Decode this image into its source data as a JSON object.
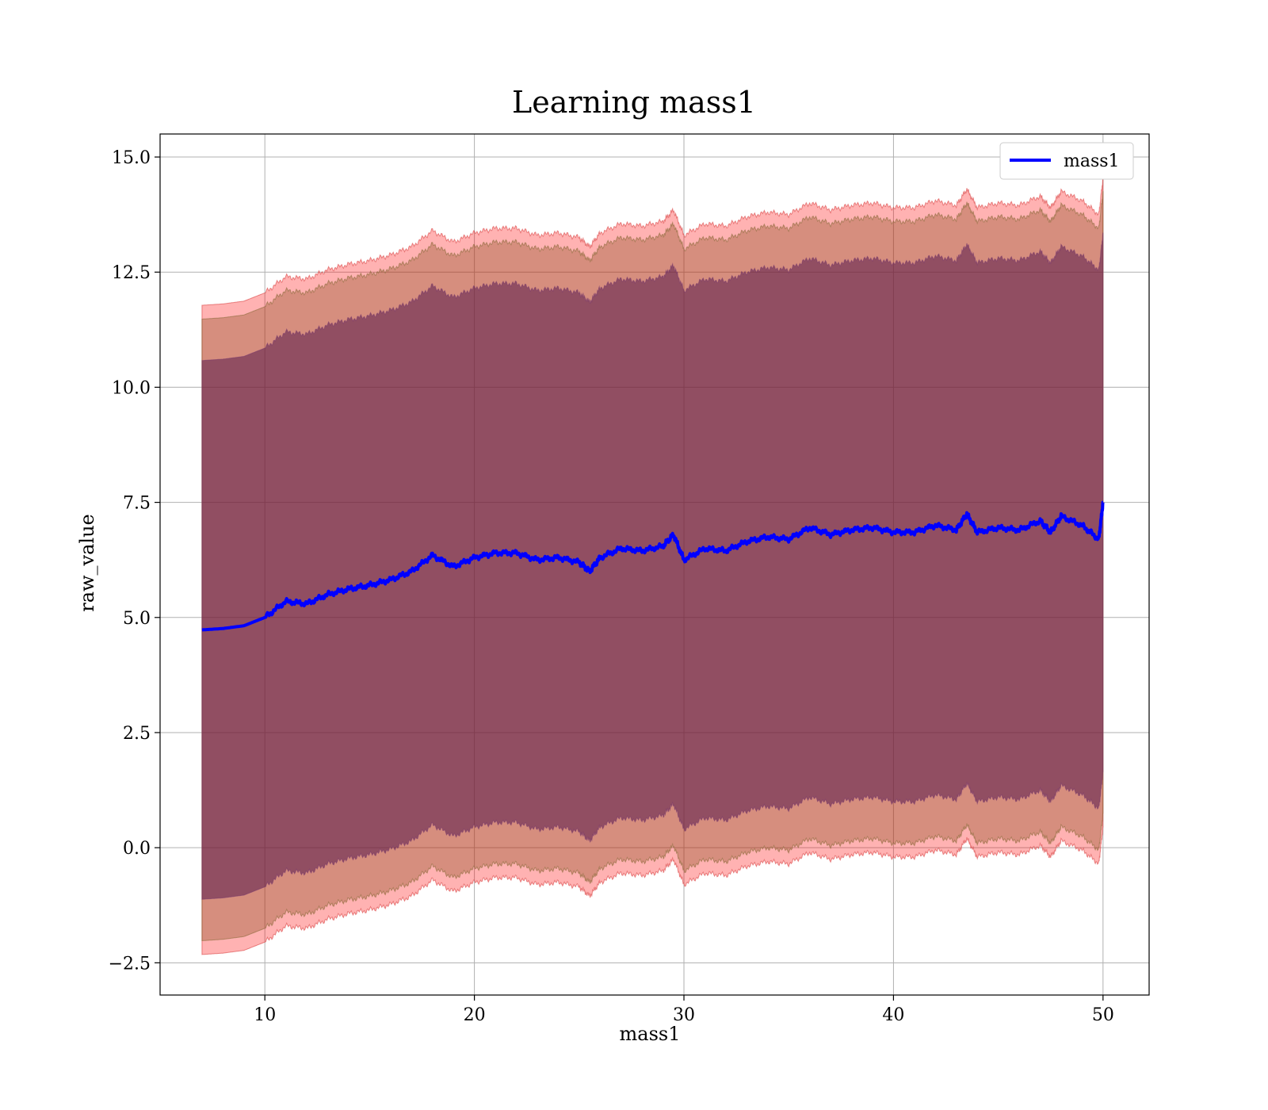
{
  "chart_data": {
    "type": "line",
    "title": "Learning mass1",
    "xlabel": "mass1",
    "ylabel": "raw_value",
    "xlim": [
      5,
      52.2
    ],
    "ylim": [
      -3.2,
      15.5
    ],
    "xticks": [
      10,
      20,
      30,
      40,
      50
    ],
    "yticks": [
      -2.5,
      0.0,
      2.5,
      5.0,
      7.5,
      10.0,
      12.5,
      15.0
    ],
    "xtick_labels": [
      "10",
      "20",
      "30",
      "40",
      "50"
    ],
    "ytick_labels": [
      "−2.5",
      "0.0",
      "2.5",
      "5.0",
      "7.5",
      "10.0",
      "12.5",
      "15.0"
    ],
    "grid": true,
    "legend": {
      "placement": "upper right",
      "entries": [
        "mass1"
      ]
    },
    "colors": {
      "line": "#0000ff",
      "band": "#ff0000",
      "band_outer_alpha": 0.3,
      "band_mid_alpha": 0.3,
      "band_inner_alpha": 0.3,
      "inner_overlay": "#1f4a8a"
    },
    "series": [
      {
        "name": "mass1",
        "x": [
          7,
          8,
          9,
          10,
          11,
          12,
          13,
          14,
          15,
          16,
          17,
          18,
          19,
          20,
          21,
          22,
          23,
          24,
          25,
          25.5,
          26,
          27,
          28,
          29,
          29.5,
          30,
          31,
          32,
          33,
          34,
          35,
          36,
          37,
          38,
          39,
          40,
          41,
          42,
          43,
          43.5,
          44,
          45,
          46,
          47,
          47.5,
          48,
          49,
          49.8,
          50
        ],
        "y": [
          4.73,
          4.76,
          4.82,
          5.0,
          5.35,
          5.3,
          5.5,
          5.62,
          5.7,
          5.82,
          6.0,
          6.35,
          6.1,
          6.3,
          6.4,
          6.4,
          6.25,
          6.3,
          6.2,
          6.0,
          6.3,
          6.5,
          6.45,
          6.55,
          6.8,
          6.25,
          6.5,
          6.45,
          6.65,
          6.75,
          6.7,
          6.95,
          6.8,
          6.9,
          6.95,
          6.85,
          6.85,
          7.0,
          6.9,
          7.25,
          6.85,
          6.95,
          6.9,
          7.1,
          6.85,
          7.2,
          7.0,
          6.7,
          7.5
        ]
      }
    ],
    "bands": [
      {
        "label": "outer",
        "half_width": 7.05
      },
      {
        "label": "middle",
        "half_width": 6.75
      },
      {
        "label": "inner",
        "half_width": 5.85
      }
    ]
  }
}
